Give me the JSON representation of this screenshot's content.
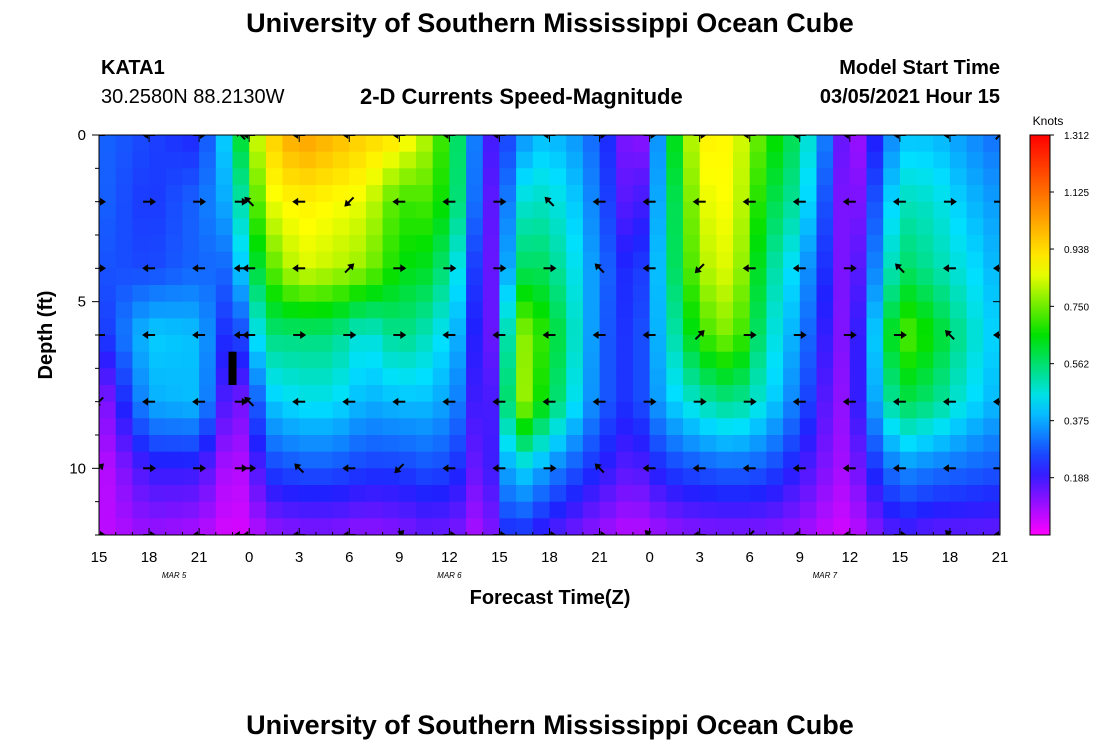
{
  "header": {
    "title": "University of Southern Mississippi Ocean Cube",
    "station_id": "KATA1",
    "station_coords": "30.2580N 88.2130W",
    "subtitle": "2-D Currents Speed-Magnitude",
    "model_label": "Model Start Time",
    "model_time": "03/05/2021 Hour 15",
    "footer_title": "University of Southern Mississippi Ocean Cube"
  },
  "colors": {
    "palette": [
      "#ff00ff",
      "#2020ff",
      "#00e0ff",
      "#00e000",
      "#ffff00",
      "#ff8000",
      "#ff0000"
    ],
    "arrow": "#000000",
    "marker": "#000000"
  },
  "chart_data": {
    "type": "heatmap",
    "title": "2-D Currents Speed-Magnitude",
    "xlabel": "Forecast Time(Z)",
    "ylabel": "Depth (ft)",
    "x_hours": [
      0,
      3,
      6,
      9,
      12,
      15,
      18,
      21,
      24,
      27,
      30,
      33,
      36,
      39,
      42,
      45,
      48,
      51,
      54
    ],
    "x_tick_labels": [
      "15",
      "18",
      "21",
      "0",
      "3",
      "6",
      "9",
      "12",
      "15",
      "18",
      "21",
      "0",
      "3",
      "6",
      "9",
      "12",
      "15",
      "18",
      "21"
    ],
    "x_range": [
      0,
      54
    ],
    "date_labels": [
      {
        "text": "MAR 5",
        "hour": 4.5
      },
      {
        "text": "MAR 6",
        "hour": 21
      },
      {
        "text": "MAR 7",
        "hour": 43.5
      }
    ],
    "y_range": [
      0,
      12
    ],
    "y_ticks": [
      0,
      5,
      10
    ],
    "y_tick_labels": [
      "0",
      "5",
      "10"
    ],
    "colorbar": {
      "label": "Knots",
      "min": 0,
      "max": 1.312,
      "tick_labels": [
        "1.312",
        "1.125",
        "0.938",
        "0.750",
        "0.562",
        "0.375",
        "0.188"
      ],
      "tick_values": [
        1.312,
        1.125,
        0.938,
        0.75,
        0.562,
        0.375,
        0.188
      ]
    },
    "times": [
      0,
      3,
      6,
      8,
      9,
      10,
      12,
      14,
      16,
      18,
      20,
      22,
      23,
      24,
      25,
      26,
      28,
      30,
      32,
      33,
      34,
      36,
      38,
      40,
      42,
      44,
      45,
      46,
      48,
      50,
      52,
      54
    ],
    "depths": [
      0,
      2,
      4,
      6,
      8,
      10,
      12
    ],
    "speed": [
      [
        0.3,
        0.3,
        0.28,
        0.22,
        0.08,
        0.05,
        0.06
      ],
      [
        0.26,
        0.24,
        0.26,
        0.42,
        0.38,
        0.2,
        0.1
      ],
      [
        0.22,
        0.3,
        0.3,
        0.4,
        0.4,
        0.2,
        0.08
      ],
      [
        0.48,
        0.4,
        0.3,
        0.18,
        0.1,
        0.05,
        0.03
      ],
      [
        0.75,
        0.62,
        0.52,
        0.35,
        0.18,
        0.1,
        0.05
      ],
      [
        0.92,
        0.85,
        0.7,
        0.55,
        0.4,
        0.25,
        0.1
      ],
      [
        1.05,
        0.9,
        0.85,
        0.55,
        0.45,
        0.28,
        0.12
      ],
      [
        1.0,
        0.88,
        0.82,
        0.55,
        0.45,
        0.28,
        0.12
      ],
      [
        0.95,
        0.85,
        0.78,
        0.45,
        0.38,
        0.25,
        0.1
      ],
      [
        0.92,
        0.7,
        0.65,
        0.55,
        0.4,
        0.25,
        0.12
      ],
      [
        0.78,
        0.72,
        0.62,
        0.48,
        0.4,
        0.28,
        0.15
      ],
      [
        0.5,
        0.5,
        0.4,
        0.35,
        0.3,
        0.22,
        0.12
      ],
      [
        0.15,
        0.12,
        0.1,
        0.08,
        0.08,
        0.08,
        0.05
      ],
      [
        0.22,
        0.2,
        0.2,
        0.22,
        0.28,
        0.3,
        0.2
      ],
      [
        0.3,
        0.45,
        0.55,
        0.8,
        0.85,
        0.45,
        0.25
      ],
      [
        0.4,
        0.5,
        0.6,
        0.75,
        0.72,
        0.4,
        0.2
      ],
      [
        0.38,
        0.45,
        0.5,
        0.55,
        0.5,
        0.3,
        0.15
      ],
      [
        0.28,
        0.3,
        0.32,
        0.3,
        0.3,
        0.22,
        0.1
      ],
      [
        0.08,
        0.12,
        0.2,
        0.22,
        0.22,
        0.15,
        0.06
      ],
      [
        0.15,
        0.25,
        0.3,
        0.32,
        0.32,
        0.2,
        0.08
      ],
      [
        0.55,
        0.5,
        0.5,
        0.45,
        0.4,
        0.25,
        0.1
      ],
      [
        0.9,
        0.85,
        0.8,
        0.7,
        0.5,
        0.28,
        0.12
      ],
      [
        0.88,
        0.88,
        0.86,
        0.78,
        0.55,
        0.3,
        0.12
      ],
      [
        0.7,
        0.62,
        0.55,
        0.5,
        0.45,
        0.28,
        0.12
      ],
      [
        0.55,
        0.5,
        0.4,
        0.35,
        0.3,
        0.2,
        0.1
      ],
      [
        0.25,
        0.2,
        0.18,
        0.15,
        0.12,
        0.1,
        0.05
      ],
      [
        0.05,
        0.06,
        0.08,
        0.1,
        0.1,
        0.08,
        0.04
      ],
      [
        0.15,
        0.2,
        0.25,
        0.3,
        0.3,
        0.2,
        0.1
      ],
      [
        0.4,
        0.5,
        0.58,
        0.75,
        0.6,
        0.35,
        0.18
      ],
      [
        0.4,
        0.48,
        0.52,
        0.65,
        0.55,
        0.32,
        0.15
      ],
      [
        0.35,
        0.4,
        0.45,
        0.5,
        0.45,
        0.3,
        0.15
      ],
      [
        0.3,
        0.35,
        0.38,
        0.4,
        0.38,
        0.28,
        0.15
      ]
    ],
    "arrows": {
      "times": [
        0,
        3,
        6,
        8.5,
        9,
        12,
        15,
        18,
        21,
        24,
        27,
        30,
        33,
        36,
        39,
        42,
        45,
        48,
        51,
        54
      ],
      "depths": [
        0,
        2,
        4,
        6,
        8,
        10,
        12
      ],
      "pattern_directions": [
        "W",
        "W",
        "E",
        "NW",
        "W",
        "W",
        "W",
        "W",
        "W",
        "W",
        "W",
        "E",
        "E",
        "E",
        "W",
        "W",
        "W",
        "W",
        "W",
        "NE",
        "E",
        "E",
        "E",
        "E",
        "NW",
        "W",
        "SW"
      ]
    },
    "marker": {
      "hour": 8,
      "depth_from": 6.5,
      "depth_to": 7.5
    }
  }
}
